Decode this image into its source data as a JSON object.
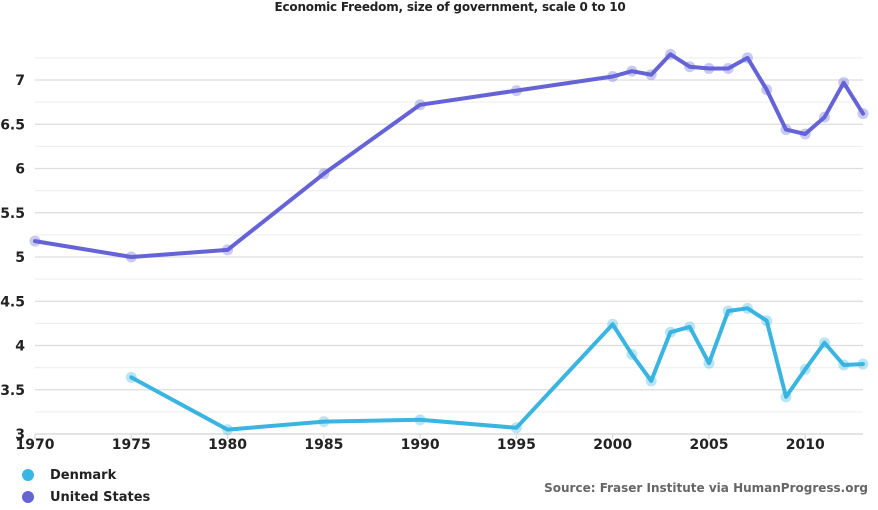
{
  "chart_data": {
    "type": "line",
    "title": "Economic Freedom, size of government, scale 0 to 10",
    "xlabel": "",
    "ylabel": "",
    "xlim": [
      1970,
      2013
    ],
    "ylim": [
      3,
      7.5
    ],
    "x_ticks": [
      "1970",
      "1975",
      "1980",
      "1985",
      "1990",
      "1995",
      "2000",
      "2005",
      "2010"
    ],
    "y_ticks": [
      "3",
      "3.5",
      "4",
      "4.5",
      "5",
      "5.5",
      "6",
      "6.5",
      "7"
    ],
    "grid": true,
    "legend_placement": "bottom-left",
    "series": [
      {
        "name": "Denmark",
        "color": "#3ab4e0",
        "x": [
          1975,
          1980,
          1985,
          1990,
          1995,
          2000,
          2001,
          2002,
          2003,
          2004,
          2005,
          2006,
          2007,
          2008,
          2009,
          2010,
          2011,
          2012,
          2013
        ],
        "values": [
          3.64,
          3.05,
          3.14,
          3.16,
          3.07,
          4.24,
          3.9,
          3.6,
          4.15,
          4.21,
          3.8,
          4.39,
          4.42,
          4.28,
          3.42,
          3.73,
          4.03,
          3.78,
          3.79
        ]
      },
      {
        "name": "United States",
        "color": "#6563d6",
        "x": [
          1970,
          1975,
          1980,
          1985,
          1990,
          1995,
          2000,
          2001,
          2002,
          2003,
          2004,
          2005,
          2006,
          2007,
          2008,
          2009,
          2010,
          2011,
          2012,
          2013
        ],
        "values": [
          5.18,
          5.0,
          5.08,
          5.94,
          6.72,
          6.88,
          7.04,
          7.1,
          7.06,
          7.29,
          7.15,
          7.13,
          7.13,
          7.25,
          6.89,
          6.44,
          6.39,
          6.58,
          6.97,
          6.62
        ]
      }
    ],
    "source": "Source: Fraser Institute via HumanProgress.org"
  }
}
